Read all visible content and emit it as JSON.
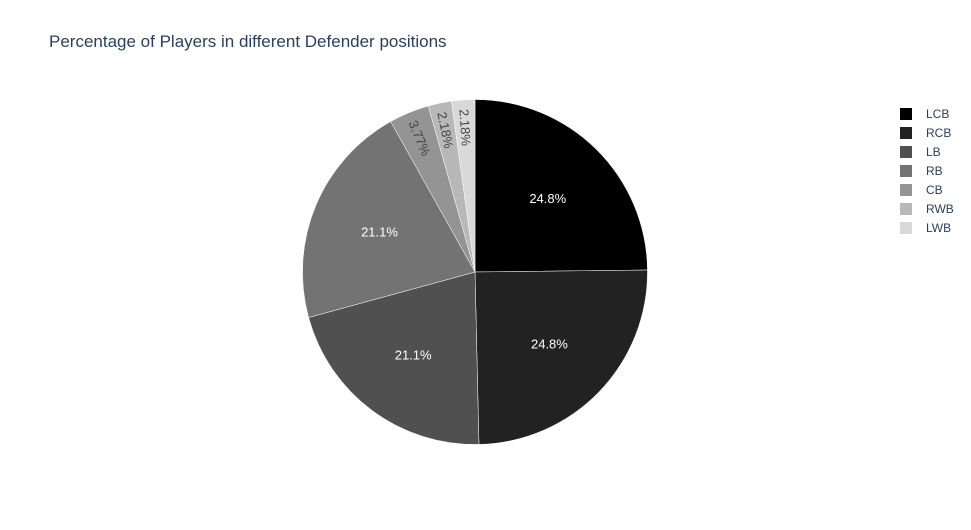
{
  "chart_data": {
    "type": "pie",
    "title": "Percentage of Players in different Defender positions",
    "legend_position": "top-right",
    "text_colors": {
      "dark_slice": "#ffffff",
      "light_slice": "#444444"
    },
    "legend_text_color": "#2a3f5f",
    "slices": [
      {
        "label": "LCB",
        "value": 24.8,
        "text": "24.8%",
        "color": "#000000"
      },
      {
        "label": "RCB",
        "value": 24.8,
        "text": "24.8%",
        "color": "#222222"
      },
      {
        "label": "LB",
        "value": 21.1,
        "text": "21.1%",
        "color": "#505050"
      },
      {
        "label": "RB",
        "value": 21.1,
        "text": "21.1%",
        "color": "#737373"
      },
      {
        "label": "CB",
        "value": 3.77,
        "text": "3.77%",
        "color": "#949494"
      },
      {
        "label": "RWB",
        "value": 2.18,
        "text": "2.18%",
        "color": "#b8b8b8"
      },
      {
        "label": "LWB",
        "value": 2.18,
        "text": "2.18%",
        "color": "#d9d9d9"
      }
    ]
  }
}
